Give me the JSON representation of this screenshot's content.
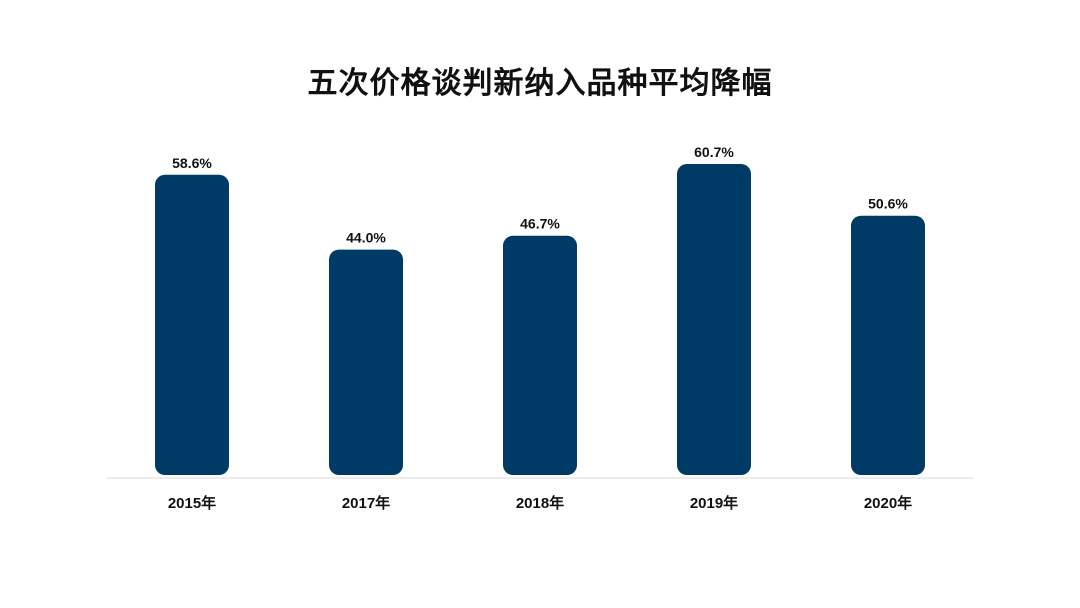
{
  "chart_data": {
    "type": "bar",
    "title": "五次价格谈判新纳入品种平均降幅",
    "xlabel": "",
    "ylabel": "",
    "categories": [
      "2015年",
      "2017年",
      "2018年",
      "2019年",
      "2020年"
    ],
    "values": [
      58.6,
      44.0,
      46.7,
      60.7,
      50.6
    ],
    "data_labels": [
      "58.6%",
      "44.0%",
      "46.7%",
      "60.7%",
      "50.6%"
    ],
    "unit": "%",
    "ylim": [
      0,
      60.7
    ],
    "grid": false,
    "legend": "none",
    "bar_color": "#003a66",
    "axis_color": "#d9d9d9"
  }
}
